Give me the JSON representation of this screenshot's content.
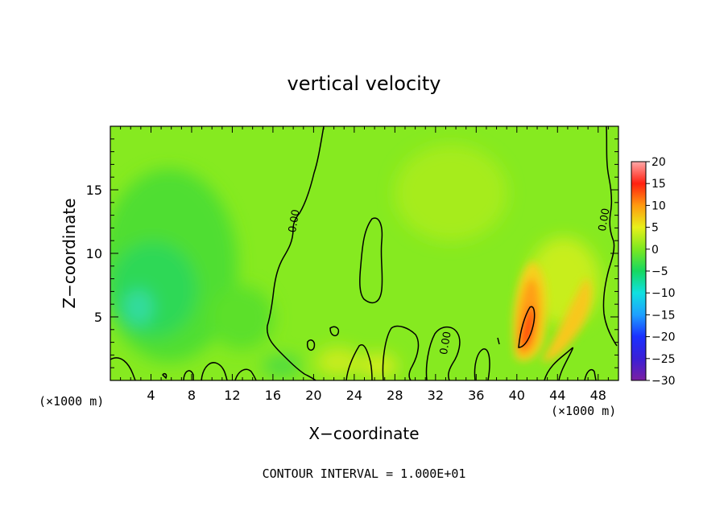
{
  "chart_data": {
    "type": "contour",
    "title": "vertical velocity",
    "xlabel": "X−coordinate",
    "ylabel": "Z−coordinate",
    "x_unit_left": "(×1000 m)",
    "x_unit_right": "(×1000 m)",
    "footer": "CONTOUR INTERVAL = 1.000E+01",
    "xlim": [
      0,
      50
    ],
    "ylim": [
      0,
      20
    ],
    "x_ticks": [
      4,
      8,
      12,
      16,
      20,
      24,
      28,
      32,
      36,
      40,
      44,
      48
    ],
    "y_ticks": [
      5,
      10,
      15
    ],
    "colorbar": {
      "min": -30,
      "max": 20,
      "ticks": [
        20,
        15,
        10,
        5,
        0,
        -5,
        -10,
        -15,
        -20,
        -25,
        -30
      ],
      "tick_labels": [
        "20",
        "15",
        "10",
        "5",
        "0",
        "−5",
        "−10",
        "−15",
        "−20",
        "−25",
        "−30"
      ]
    },
    "contour_labels": [
      {
        "text": "0.00",
        "x": 18.4,
        "y": 12.5
      },
      {
        "text": "0.00",
        "x": 48.9,
        "y": 12.6
      },
      {
        "text": "0.00",
        "x": 33.3,
        "y": 2.9
      }
    ],
    "features": [
      {
        "name": "updraft-core",
        "x": 41,
        "z": 5,
        "w": 18
      },
      {
        "name": "updraft-tilted-band",
        "x": 43.5,
        "z": 6,
        "w": 8
      },
      {
        "name": "downdraft-region",
        "x": 3,
        "z": 5,
        "w": -12
      },
      {
        "name": "closed-zero-contour",
        "x": 26,
        "z": 9,
        "w": 0
      }
    ]
  }
}
